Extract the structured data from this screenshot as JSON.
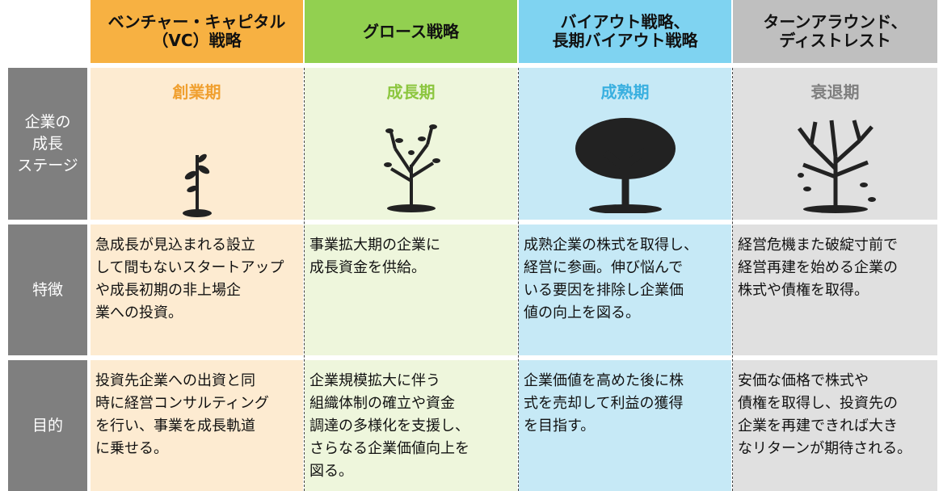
{
  "row_labels": [
    [
      "企業の",
      "成長",
      "ステージ"
    ],
    [
      "特徴"
    ],
    [
      "目的"
    ]
  ],
  "columns": [
    {
      "header": [
        "ベンチャー・キャピタル",
        "（VC）戦略"
      ],
      "stage": "創業期",
      "features": [
        "急成長が見込まれる設立",
        "して間もないスタートアップ",
        "や成長初期の非上場企",
        "業への投資。"
      ],
      "purpose": [
        "投資先企業への出資と同",
        "時に経営コンサルティング",
        "を行い、事業を成長軌道",
        "に乗せる。"
      ]
    },
    {
      "header": [
        "グロース戦略"
      ],
      "stage": "成長期",
      "features": [
        "事業拡大期の企業に",
        "成長資金を供給。"
      ],
      "purpose": [
        "企業規模拡大に伴う",
        "組織体制の確立や資金",
        "調達の多様化を支援し、",
        "さらなる企業価値向上を",
        "図る。"
      ]
    },
    {
      "header": [
        "バイアウト戦略、",
        "長期バイアウト戦略"
      ],
      "stage": "成熟期",
      "features": [
        "成熟企業の株式を取得し、",
        "経営に参画。伸び悩んで",
        "いる要因を排除し企業価",
        "値の向上を図る。"
      ],
      "purpose": [
        "企業価値を高めた後に株",
        "式を売却して利益の獲得",
        "を目指す。"
      ]
    },
    {
      "header": [
        "ターンアラウンド、",
        "ディストレスト"
      ],
      "stage": "衰退期",
      "features": [
        "経営危機また破綻寸前で",
        "経営再建を始める企業の",
        "株式や債権を取得。"
      ],
      "purpose": [
        "安価な価格で株式や",
        "債権を取得し、投資先の",
        "企業を再建できれば大き",
        "なリターンが期待される。"
      ]
    }
  ]
}
